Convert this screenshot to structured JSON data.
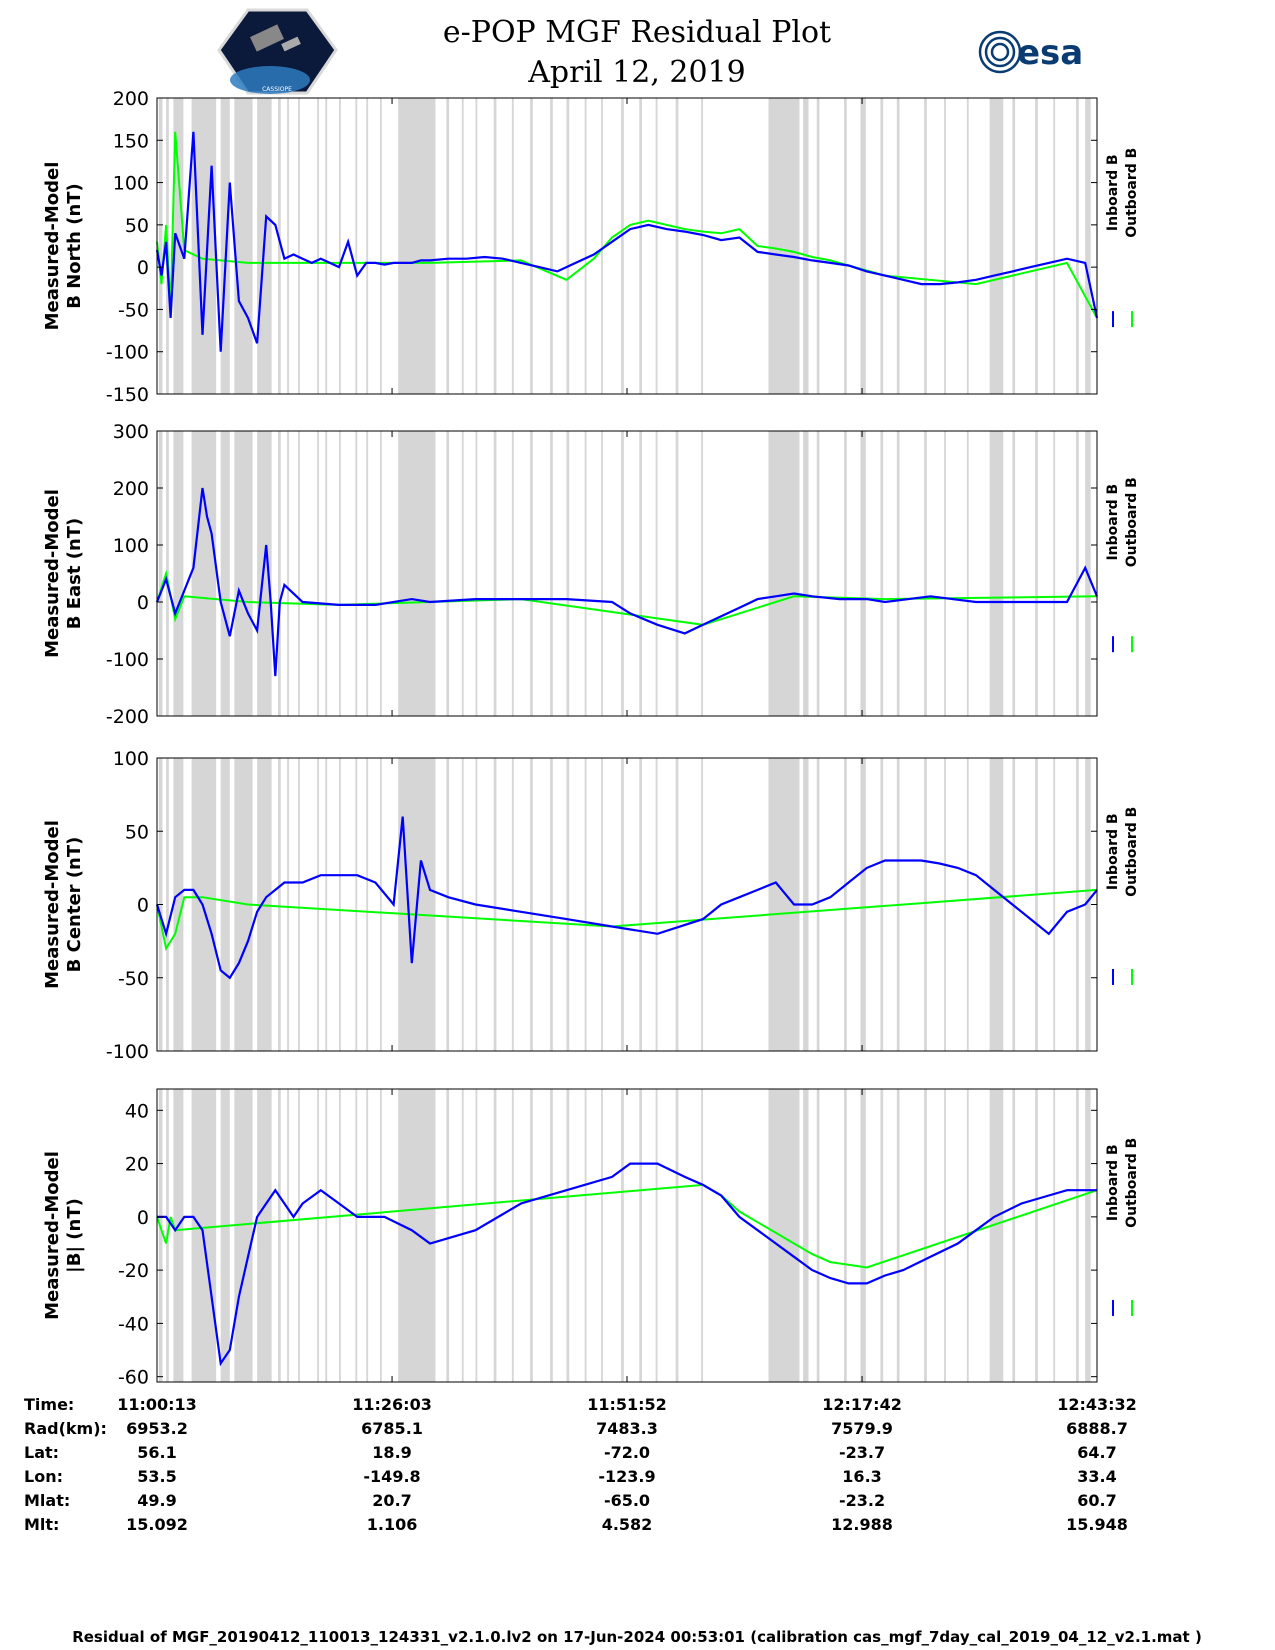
{
  "header": {
    "title_line1": "e-POP MGF Residual Plot",
    "title_line2": "April 12, 2019",
    "logo_text": "CASSIOPE",
    "esa_text": "esa"
  },
  "legend": {
    "inboard": "Inboard B",
    "outboard": "Outboard B"
  },
  "colors": {
    "inboard": "#0000ff",
    "outboard": "#00ff00",
    "gap_shading": "#d6d6d6"
  },
  "chart_data": [
    {
      "type": "line",
      "ylabel_line1": "Measured-Model",
      "ylabel_line2": "B North (nT)",
      "ylim": [
        -150,
        200
      ],
      "yticks": [
        200,
        150,
        100,
        50,
        0,
        -50,
        -100,
        -150
      ],
      "series": [
        {
          "name": "Inboard B",
          "x": [
            0,
            0.5,
            1,
            1.5,
            2,
            3,
            4,
            5,
            6,
            7,
            8,
            9,
            10,
            11,
            12,
            13,
            14,
            15,
            16,
            17,
            18,
            19,
            20,
            21,
            22,
            23,
            24,
            25,
            26,
            27,
            28,
            29,
            30,
            32,
            34,
            36,
            38,
            40,
            42,
            44,
            46,
            48,
            50,
            52,
            54,
            56,
            58,
            60,
            62,
            64,
            66,
            68,
            70,
            72,
            74,
            76,
            78,
            80,
            82,
            84,
            86,
            88,
            90,
            92,
            94,
            96,
            98,
            100,
            102,
            103.3
          ],
          "y": [
            20,
            -10,
            30,
            -60,
            40,
            10,
            160,
            -80,
            120,
            -100,
            100,
            -40,
            -60,
            -90,
            60,
            50,
            10,
            15,
            10,
            5,
            10,
            5,
            0,
            30,
            -10,
            5,
            5,
            3,
            5,
            5,
            5,
            8,
            8,
            10,
            10,
            12,
            10,
            5,
            0,
            -5,
            5,
            15,
            30,
            45,
            50,
            45,
            42,
            38,
            32,
            35,
            18,
            15,
            12,
            8,
            5,
            2,
            -5,
            -10,
            -15,
            -20,
            -20,
            -18,
            -15,
            -10,
            -5,
            0,
            5,
            10,
            5,
            -60
          ]
        },
        {
          "name": "Outboard B",
          "x": [
            0,
            0.5,
            1,
            1.5,
            2,
            3,
            5,
            10,
            20,
            30,
            40,
            45,
            48,
            50,
            52,
            54,
            56,
            58,
            60,
            62,
            64,
            66,
            68,
            70,
            72,
            74,
            76,
            80,
            90,
            100,
            103.3
          ],
          "y": [
            30,
            -20,
            50,
            -50,
            160,
            20,
            10,
            5,
            5,
            5,
            8,
            -15,
            10,
            35,
            50,
            55,
            50,
            45,
            42,
            40,
            45,
            25,
            22,
            18,
            12,
            8,
            2,
            -10,
            -20,
            5,
            -60
          ]
        }
      ]
    },
    {
      "type": "line",
      "ylabel_line1": "Measured-Model",
      "ylabel_line2": "B East (nT)",
      "ylim": [
        -200,
        300
      ],
      "yticks": [
        300,
        200,
        100,
        0,
        -100,
        -200
      ],
      "series": [
        {
          "name": "Inboard B",
          "x": [
            0,
            1,
            2,
            3,
            4,
            5,
            5.5,
            6,
            7,
            8,
            9,
            10,
            11,
            12,
            12.5,
            13,
            13.5,
            14,
            16,
            20,
            24,
            28,
            30,
            35,
            40,
            45,
            50,
            52,
            55,
            58,
            60,
            62,
            64,
            66,
            68,
            70,
            72,
            75,
            78,
            80,
            85,
            90,
            95,
            100,
            102,
            103.3
          ],
          "y": [
            0,
            40,
            -20,
            20,
            60,
            200,
            150,
            120,
            0,
            -60,
            20,
            -20,
            -50,
            100,
            0,
            -130,
            0,
            30,
            0,
            -5,
            -5,
            5,
            0,
            5,
            5,
            5,
            0,
            -20,
            -40,
            -55,
            -40,
            -25,
            -10,
            5,
            10,
            15,
            10,
            5,
            5,
            0,
            10,
            0,
            0,
            0,
            60,
            10
          ]
        },
        {
          "name": "Outboard B",
          "x": [
            0,
            1,
            2,
            3,
            10,
            20,
            40,
            60,
            70,
            80,
            103.3
          ],
          "y": [
            0,
            50,
            -30,
            10,
            0,
            -5,
            5,
            -40,
            10,
            5,
            10
          ]
        }
      ]
    },
    {
      "type": "line",
      "ylabel_line1": "Measured-Model",
      "ylabel_line2": "B Center (nT)",
      "ylim": [
        -100,
        100
      ],
      "yticks": [
        100,
        50,
        0,
        -50,
        -100
      ],
      "series": [
        {
          "name": "Inboard B",
          "x": [
            0,
            1,
            2,
            3,
            4,
            5,
            6,
            7,
            8,
            9,
            10,
            11,
            12,
            13,
            14,
            16,
            18,
            20,
            22,
            24,
            26,
            27,
            28,
            29,
            30,
            32,
            35,
            40,
            45,
            50,
            55,
            60,
            62,
            64,
            66,
            68,
            70,
            72,
            74,
            76,
            78,
            80,
            82,
            84,
            86,
            88,
            90,
            92,
            94,
            96,
            98,
            100,
            102,
            103.3
          ],
          "y": [
            0,
            -20,
            5,
            10,
            10,
            0,
            -20,
            -45,
            -50,
            -40,
            -25,
            -5,
            5,
            10,
            15,
            15,
            20,
            20,
            20,
            15,
            0,
            60,
            -40,
            30,
            10,
            5,
            0,
            -5,
            -10,
            -15,
            -20,
            -10,
            0,
            5,
            10,
            15,
            0,
            0,
            5,
            15,
            25,
            30,
            30,
            30,
            28,
            25,
            20,
            10,
            0,
            -10,
            -20,
            -5,
            0,
            10
          ]
        },
        {
          "name": "Outboard B",
          "x": [
            0,
            1,
            2,
            3,
            5,
            10,
            50,
            103.3
          ],
          "y": [
            0,
            -30,
            -20,
            5,
            5,
            0,
            -15,
            10
          ]
        }
      ]
    },
    {
      "type": "line",
      "ylabel_line1": "Measured-Model",
      "ylabel_line2": "|B| (nT)",
      "ylim": [
        -62,
        48
      ],
      "yticks": [
        40,
        20,
        0,
        -20,
        -40,
        -60
      ],
      "series": [
        {
          "name": "Inboard B",
          "x": [
            0,
            1,
            2,
            3,
            4,
            5,
            6,
            7,
            8,
            9,
            10,
            11,
            12,
            13,
            14,
            15,
            16,
            18,
            20,
            22,
            25,
            28,
            30,
            35,
            40,
            45,
            50,
            52,
            55,
            58,
            60,
            62,
            64,
            66,
            68,
            70,
            72,
            74,
            76,
            78,
            80,
            82,
            85,
            88,
            90,
            92,
            95,
            98,
            100,
            103.3
          ],
          "y": [
            0,
            0,
            -5,
            0,
            0,
            -5,
            -30,
            -55,
            -50,
            -30,
            -15,
            0,
            5,
            10,
            5,
            0,
            5,
            10,
            5,
            0,
            0,
            -5,
            -10,
            -5,
            5,
            10,
            15,
            20,
            20,
            15,
            12,
            8,
            0,
            -5,
            -10,
            -15,
            -20,
            -23,
            -25,
            -25,
            -22,
            -20,
            -15,
            -10,
            -5,
            0,
            5,
            8,
            10,
            10
          ]
        },
        {
          "name": "Outboard B",
          "x": [
            0,
            0.5,
            1,
            1.5,
            2,
            60,
            62,
            64,
            66,
            68,
            70,
            72,
            74,
            76,
            78,
            103.3
          ],
          "y": [
            0,
            -5,
            -10,
            0,
            -5,
            12,
            8,
            2,
            -2,
            -6,
            -10,
            -14,
            -17,
            -18,
            -19,
            10
          ]
        }
      ]
    }
  ],
  "x_axis": {
    "xlim": [
      0,
      103.3
    ],
    "tick_positions": [
      0,
      25.83,
      51.65,
      77.48,
      103.3
    ]
  },
  "info_table": {
    "labels": [
      "Time:",
      "Rad(km):",
      "Lat:",
      "Lon:",
      "Mlat:",
      "Mlt:"
    ],
    "columns": [
      [
        "11:00:13",
        "6953.2",
        "56.1",
        "53.5",
        "49.9",
        "15.092"
      ],
      [
        "11:26:03",
        "6785.1",
        "18.9",
        "-149.8",
        "20.7",
        "1.106"
      ],
      [
        "11:51:52",
        "7483.3",
        "-72.0",
        "-123.9",
        "-65.0",
        "4.582"
      ],
      [
        "12:17:42",
        "7579.9",
        "-23.7",
        "16.3",
        "-23.2",
        "12.988"
      ],
      [
        "12:43:32",
        "6888.7",
        "64.7",
        "33.4",
        "60.7",
        "15.948"
      ]
    ]
  },
  "gap_intervals": [
    [
      0.2,
      0.6
    ],
    [
      1.0,
      1.3
    ],
    [
      1.8,
      2.9
    ],
    [
      3.8,
      6.5
    ],
    [
      7.0,
      8.0
    ],
    [
      8.5,
      10.5
    ],
    [
      11.0,
      12.6
    ],
    [
      13.3,
      13.6
    ],
    [
      14.3,
      14.5
    ],
    [
      15.5,
      15.7
    ],
    [
      17.6,
      17.8
    ],
    [
      18.5,
      18.7
    ],
    [
      20.0,
      20.2
    ],
    [
      21.8,
      22.0
    ],
    [
      23.0,
      23.2
    ],
    [
      24.5,
      24.7
    ],
    [
      26.5,
      30.6
    ],
    [
      31.8,
      32.1
    ],
    [
      33.5,
      33.7
    ],
    [
      35.0,
      35.2
    ],
    [
      37.0,
      37.3
    ],
    [
      39.0,
      39.2
    ],
    [
      41.0,
      41.3
    ],
    [
      43.2,
      43.5
    ],
    [
      45.0,
      45.3
    ],
    [
      47.0,
      47.2
    ],
    [
      48.8,
      49.0
    ],
    [
      51.0,
      51.3
    ],
    [
      53.0,
      53.3
    ],
    [
      54.8,
      55.0
    ],
    [
      57.0,
      57.3
    ],
    [
      59.8,
      60.0
    ],
    [
      67.2,
      70.6
    ],
    [
      71.0,
      71.6
    ],
    [
      72.5,
      72.8
    ],
    [
      75.5,
      75.8
    ],
    [
      77.3,
      77.9
    ],
    [
      79.5,
      79.8
    ],
    [
      81.3,
      81.6
    ],
    [
      84.3,
      84.6
    ],
    [
      86.5,
      86.7
    ],
    [
      89.0,
      89.2
    ],
    [
      91.5,
      93.0
    ],
    [
      94.0,
      94.3
    ],
    [
      96.5,
      96.8
    ],
    [
      98.5,
      98.7
    ],
    [
      101.0,
      101.3
    ],
    [
      102.0,
      102.6
    ]
  ],
  "footer": "Residual of MGF_20190412_110013_124331_v2.1.0.lv2 on 17-Jun-2024 00:53:01 (calibration cas_mgf_7day_cal_2019_04_12_v2.1.mat )"
}
